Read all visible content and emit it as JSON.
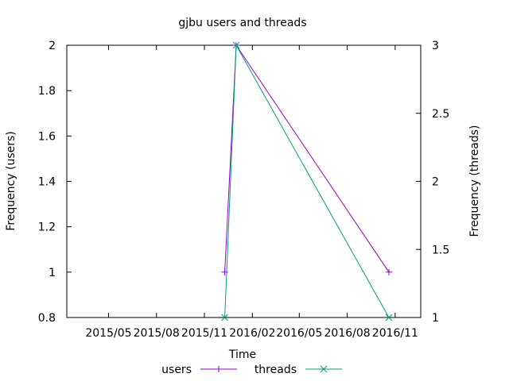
{
  "chart_data": {
    "type": "line",
    "title": "gjbu users and threads",
    "xlabel": "Time",
    "ylabel": "Frequency (users)",
    "y2label": "Frequency (threads)",
    "x_axis": {
      "type": "date",
      "range": [
        "2015-02-10",
        "2016-12-20"
      ],
      "ticks": [
        {
          "value": "2015-05-01",
          "label": "2015/05"
        },
        {
          "value": "2015-08-01",
          "label": "2015/08"
        },
        {
          "value": "2015-11-01",
          "label": "2015/11"
        },
        {
          "value": "2016-02-01",
          "label": "2016/02"
        },
        {
          "value": "2016-05-01",
          "label": "2016/05"
        },
        {
          "value": "2016-08-01",
          "label": "2016/08"
        },
        {
          "value": "2016-11-01",
          "label": "2016/11"
        }
      ]
    },
    "y_axis": {
      "range": [
        0.8,
        2
      ],
      "ticks": [
        {
          "value": 0.8,
          "label": "0.8"
        },
        {
          "value": 1,
          "label": "1"
        },
        {
          "value": 1.2,
          "label": "1.2"
        },
        {
          "value": 1.4,
          "label": "1.4"
        },
        {
          "value": 1.6,
          "label": "1.6"
        },
        {
          "value": 1.8,
          "label": "1.8"
        },
        {
          "value": 2,
          "label": "2"
        }
      ]
    },
    "y2_axis": {
      "range": [
        1,
        3
      ],
      "ticks": [
        {
          "value": 1,
          "label": "1"
        },
        {
          "value": 1.5,
          "label": "1.5"
        },
        {
          "value": 2,
          "label": "2"
        },
        {
          "value": 2.5,
          "label": "2.5"
        },
        {
          "value": 3,
          "label": "3"
        }
      ]
    },
    "grid": false,
    "legend_position": "bottom",
    "series": [
      {
        "name": "users",
        "axis": "y",
        "color": "#9400d3",
        "marker": "plus",
        "points": [
          {
            "x": "2015-12-10",
            "y": 1
          },
          {
            "x": "2016-01-01",
            "y": 2
          },
          {
            "x": "2016-10-20",
            "y": 1
          }
        ]
      },
      {
        "name": "threads",
        "axis": "y2",
        "color": "#009e73",
        "marker": "cross",
        "points": [
          {
            "x": "2015-12-10",
            "y": 1
          },
          {
            "x": "2016-01-01",
            "y": 3
          },
          {
            "x": "2016-10-20",
            "y": 1
          }
        ]
      }
    ]
  }
}
